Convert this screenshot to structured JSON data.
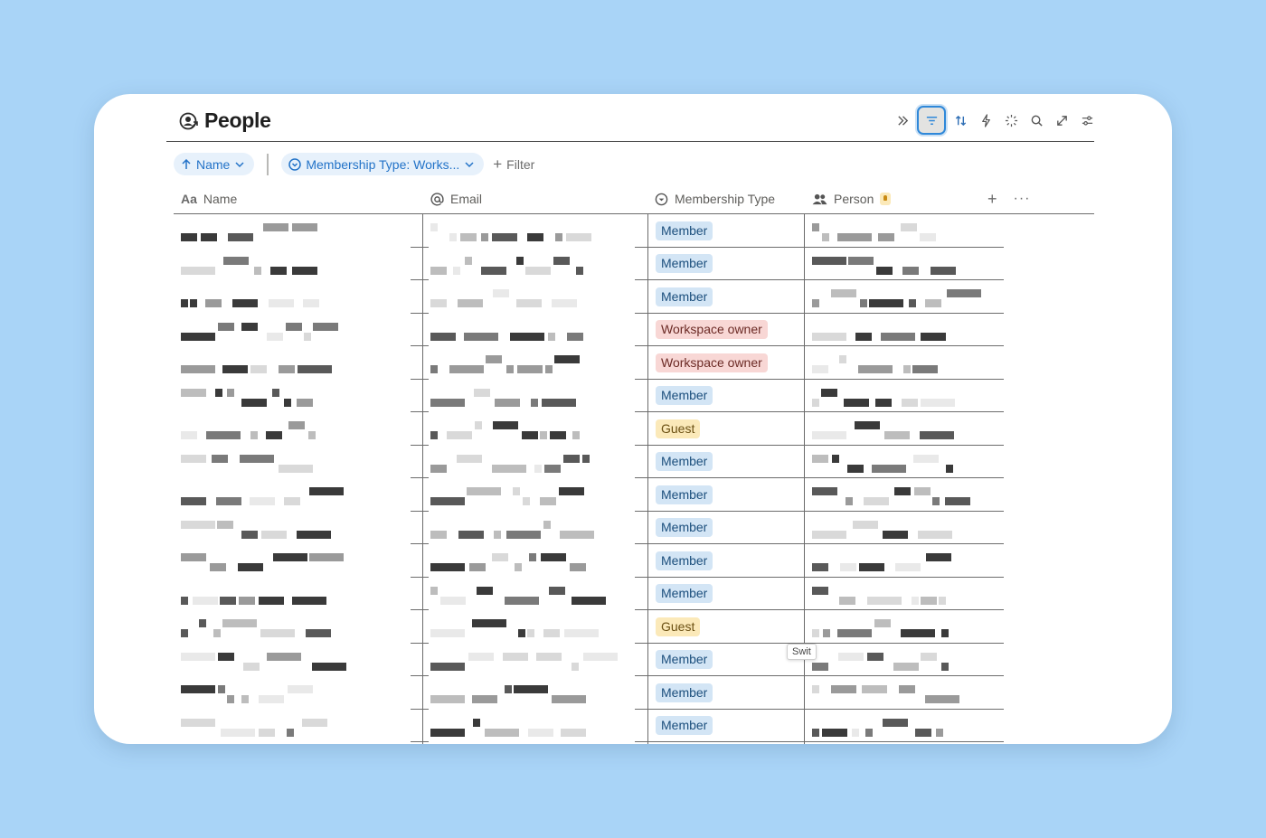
{
  "page": {
    "title": "People",
    "icon": "people-database-icon"
  },
  "toolbar": [
    {
      "name": "expand-chevrons-icon",
      "active": false
    },
    {
      "name": "filter-icon",
      "active": true
    },
    {
      "name": "sort-icon",
      "active": false
    },
    {
      "name": "automation-lightning-icon",
      "active": false
    },
    {
      "name": "ai-sparkle-icon",
      "active": false
    },
    {
      "name": "search-icon",
      "active": false
    },
    {
      "name": "fullscreen-icon",
      "active": false
    },
    {
      "name": "settings-sliders-icon",
      "active": false
    }
  ],
  "filterbar": {
    "sort_chip": "Name",
    "filter_chip": "Membership Type: Works...",
    "add_filter": "Filter"
  },
  "columns": [
    {
      "key": "name",
      "label": "Name",
      "icon": "text-aa-icon"
    },
    {
      "key": "email",
      "label": "Email",
      "icon": "at-sign-icon"
    },
    {
      "key": "membership",
      "label": "Membership Type",
      "icon": "select-circle-icon"
    },
    {
      "key": "person",
      "label": "Person",
      "icon": "people-icon"
    }
  ],
  "colors": {
    "accent": "#2373c8",
    "member_bg": "#d3e5f5",
    "member_fg": "#1c4f7d",
    "owner_bg": "#f8d7d5",
    "owner_fg": "#6b2a25",
    "guest_bg": "#fbe9b9",
    "guest_fg": "#6b5013"
  },
  "rows": [
    {
      "membership": "Member"
    },
    {
      "membership": "Member"
    },
    {
      "membership": "Member"
    },
    {
      "membership": "Workspace owner"
    },
    {
      "membership": "Workspace owner"
    },
    {
      "membership": "Member"
    },
    {
      "membership": "Guest"
    },
    {
      "membership": "Member"
    },
    {
      "membership": "Member"
    },
    {
      "membership": "Member"
    },
    {
      "membership": "Member"
    },
    {
      "membership": "Member"
    },
    {
      "membership": "Guest"
    },
    {
      "membership": "Member"
    },
    {
      "membership": "Member"
    },
    {
      "membership": "Member"
    }
  ],
  "tooltip": "Swit"
}
